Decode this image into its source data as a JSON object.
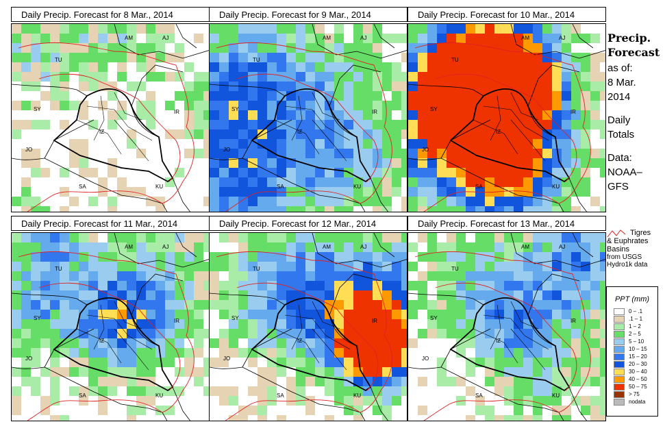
{
  "panels": [
    {
      "title": "Daily Precip. Forecast for  8 Mar., 2014",
      "day": 0
    },
    {
      "title": "Daily Precip. Forecast for  9 Mar., 2014",
      "day": 1
    },
    {
      "title": "Daily Precip. Forecast for  10 Mar., 2014",
      "day": 2
    },
    {
      "title": "Daily Precip. Forecast for  11 Mar., 2014",
      "day": 3
    },
    {
      "title": "Daily Precip. Forecast for  12 Mar., 2014",
      "day": 4
    },
    {
      "title": "Daily Precip. Forecast for  13 Mar., 2014",
      "day": 5
    }
  ],
  "country_labels": [
    "AM",
    "AJ",
    "TU",
    "SY",
    "IR",
    "JO",
    "SA",
    "KU",
    "IZ"
  ],
  "sidebar": {
    "title_line1": "Precip.",
    "title_line2": "Forecast",
    "asof_line1": "as of:",
    "asof_line2": "8 Mar.",
    "asof_line3": "2014",
    "daily_line1": "Daily",
    "daily_line2": "Totals",
    "data_line1": "Data:",
    "data_line2": "NOAA–",
    "data_line3": "GFS"
  },
  "basin_legend": {
    "line1": "Tigres",
    "line2": "& Euphrates",
    "line3": "Basins",
    "line4": "from USGS",
    "line5": "Hydro1k data",
    "color": "#e02020"
  },
  "ppt_legend": {
    "title": "PPT (mm)",
    "items": [
      {
        "label": "0 – .1",
        "color": "#ffffff"
      },
      {
        "label": ".1 – 1",
        "color": "#e6d3b3"
      },
      {
        "label": "1 – 2",
        "color": "#a8eca8"
      },
      {
        "label": "2 – 5",
        "color": "#66dd66"
      },
      {
        "label": "5 – 10",
        "color": "#99ccee"
      },
      {
        "label": "10 – 15",
        "color": "#66aaee"
      },
      {
        "label": "15 – 20",
        "color": "#3377ee"
      },
      {
        "label": "20 – 30",
        "color": "#1155dd"
      },
      {
        "label": "30 – 40",
        "color": "#ffdd55"
      },
      {
        "label": "40 – 50",
        "color": "#ff9900"
      },
      {
        "label": "50 – 75",
        "color": "#ee3300"
      },
      {
        "label": "> 75",
        "color": "#993300"
      },
      {
        "label": "nodata",
        "color": "#bbbbbb"
      }
    ]
  }
}
